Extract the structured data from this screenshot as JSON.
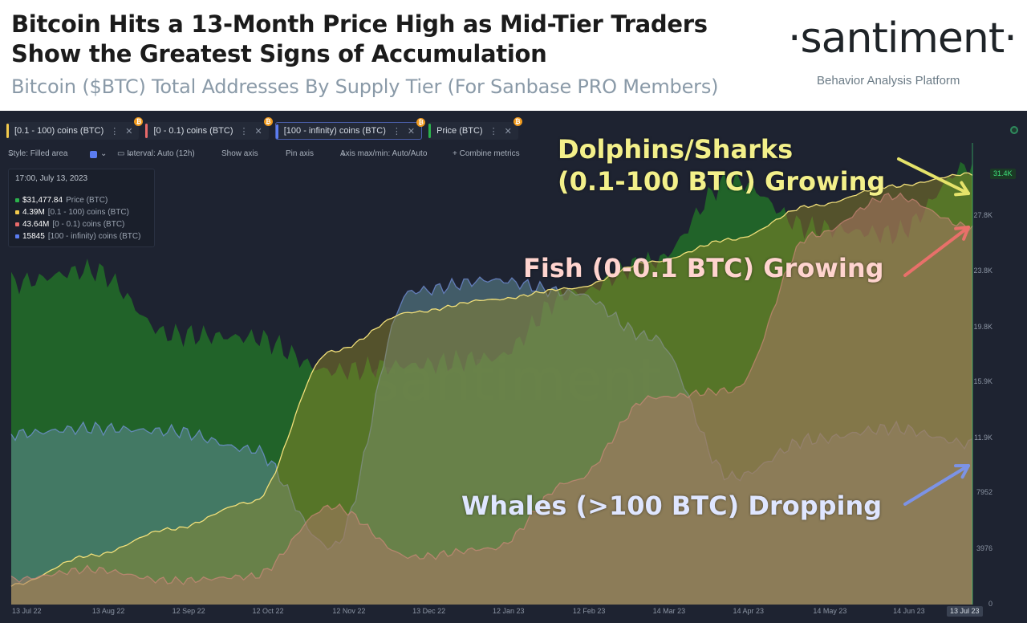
{
  "header": {
    "title_line1": "Bitcoin Hits a 13-Month Price High as Mid-Tier Traders",
    "title_line2": "Show the Greatest Signs of Accumulation",
    "subtitle": "Bitcoin ($BTC) Total Addresses By Supply Tier (For Sanbase PRO Members)",
    "brand": "·santiment·",
    "brand_tagline": "Behavior Analysis Platform"
  },
  "tabs": [
    {
      "label": "[0.1 - 100) coins (BTC)",
      "color": "#f2c94c"
    },
    {
      "label": "[0 - 0.1) coins (BTC)",
      "color": "#e86a6a"
    },
    {
      "label": "[100 - infinity) coins (BTC)",
      "color": "#5b7cf0"
    },
    {
      "label": "Price (BTC)",
      "color": "#2bb24c"
    }
  ],
  "toolbar": {
    "style": "Style: Filled area",
    "interval": "Interval: Auto (12h)",
    "show_axis": "Show axis",
    "pin_axis": "Pin axis",
    "axis_minmax": "Axis max/min: Auto/Auto",
    "combine": "+ Combine metrics"
  },
  "tooltip": {
    "date": "17:00, July 13, 2023",
    "rows": [
      {
        "value": "$31,477.84",
        "label": "Price (BTC)",
        "color": "#2bb24c"
      },
      {
        "value": "4.39M",
        "label": "[0.1 - 100) coins (BTC)",
        "color": "#f2c94c"
      },
      {
        "value": "43.64M",
        "label": "[0 - 0.1) coins (BTC)",
        "color": "#e86a6a"
      },
      {
        "value": "15845",
        "label": "[100 - infinity) coins (BTC)",
        "color": "#5b7cf0"
      }
    ]
  },
  "annotations": {
    "dolphins_line1": "Dolphins/Sharks",
    "dolphins_line2": "(0.1-100 BTC) Growing",
    "fish": "Fish (0-0.1 BTC) Growing",
    "whales": "Whales (>100 BTC) Dropping"
  },
  "watermark": "santiment",
  "chart_data": {
    "type": "area",
    "x": [
      "13 Jul 22",
      "13 Aug 22",
      "12 Sep 22",
      "12 Oct 22",
      "12 Nov 22",
      "13 Dec 22",
      "12 Jan 23",
      "12 Feb 23",
      "14 Mar 23",
      "14 Apr 23",
      "14 May 23",
      "14 Jun 23",
      "13 Jul 23"
    ],
    "x_tick_labels": [
      "13 Jul 22",
      "13 Aug 22",
      "12 Sep 22",
      "12 Oct 22",
      "12 Nov 22",
      "13 Dec 22",
      "12 Jan 23",
      "12 Feb 23",
      "14 Mar 23",
      "14 Apr 23",
      "14 May 23",
      "14 Jun 23"
    ],
    "x_cursor_label": "13 Jul 23",
    "y_tick_labels": [
      "0",
      "3976",
      "7952",
      "11.9K",
      "15.9K",
      "19.8K",
      "23.8K",
      "27.8K"
    ],
    "y_tick_values": [
      0,
      3976,
      7952,
      11900,
      15900,
      19800,
      23800,
      27800
    ],
    "y_cursor_label": "31.4K",
    "ylim": [
      0,
      33000
    ],
    "series": [
      {
        "name": "Price (BTC)",
        "color": "#2bb24c",
        "values": [
          23000,
          23900,
          19300,
          19100,
          16700,
          17100,
          17600,
          22200,
          24500,
          30300,
          26900,
          26500,
          31400
        ]
      },
      {
        "name": "[0.1 - 100) coins (BTC)",
        "color": "#f2c94c",
        "values": [
          1400,
          3500,
          5400,
          7300,
          18100,
          20900,
          21800,
          22600,
          24500,
          26100,
          28500,
          29900,
          30800
        ]
      },
      {
        "name": "[0 - 0.1) coins (BTC)",
        "color": "#e86a6a",
        "values": [
          1800,
          2500,
          1700,
          2000,
          7000,
          3400,
          4000,
          8800,
          14800,
          15300,
          26400,
          29200,
          27000
        ]
      },
      {
        "name": "[100 - infinity) coins (BTC)",
        "color": "#5b7cf0",
        "values": [
          12200,
          12600,
          12400,
          11100,
          4100,
          22400,
          23200,
          22300,
          19100,
          9100,
          11800,
          12600,
          11500
        ]
      }
    ],
    "legend": "top-left",
    "grid": false
  }
}
